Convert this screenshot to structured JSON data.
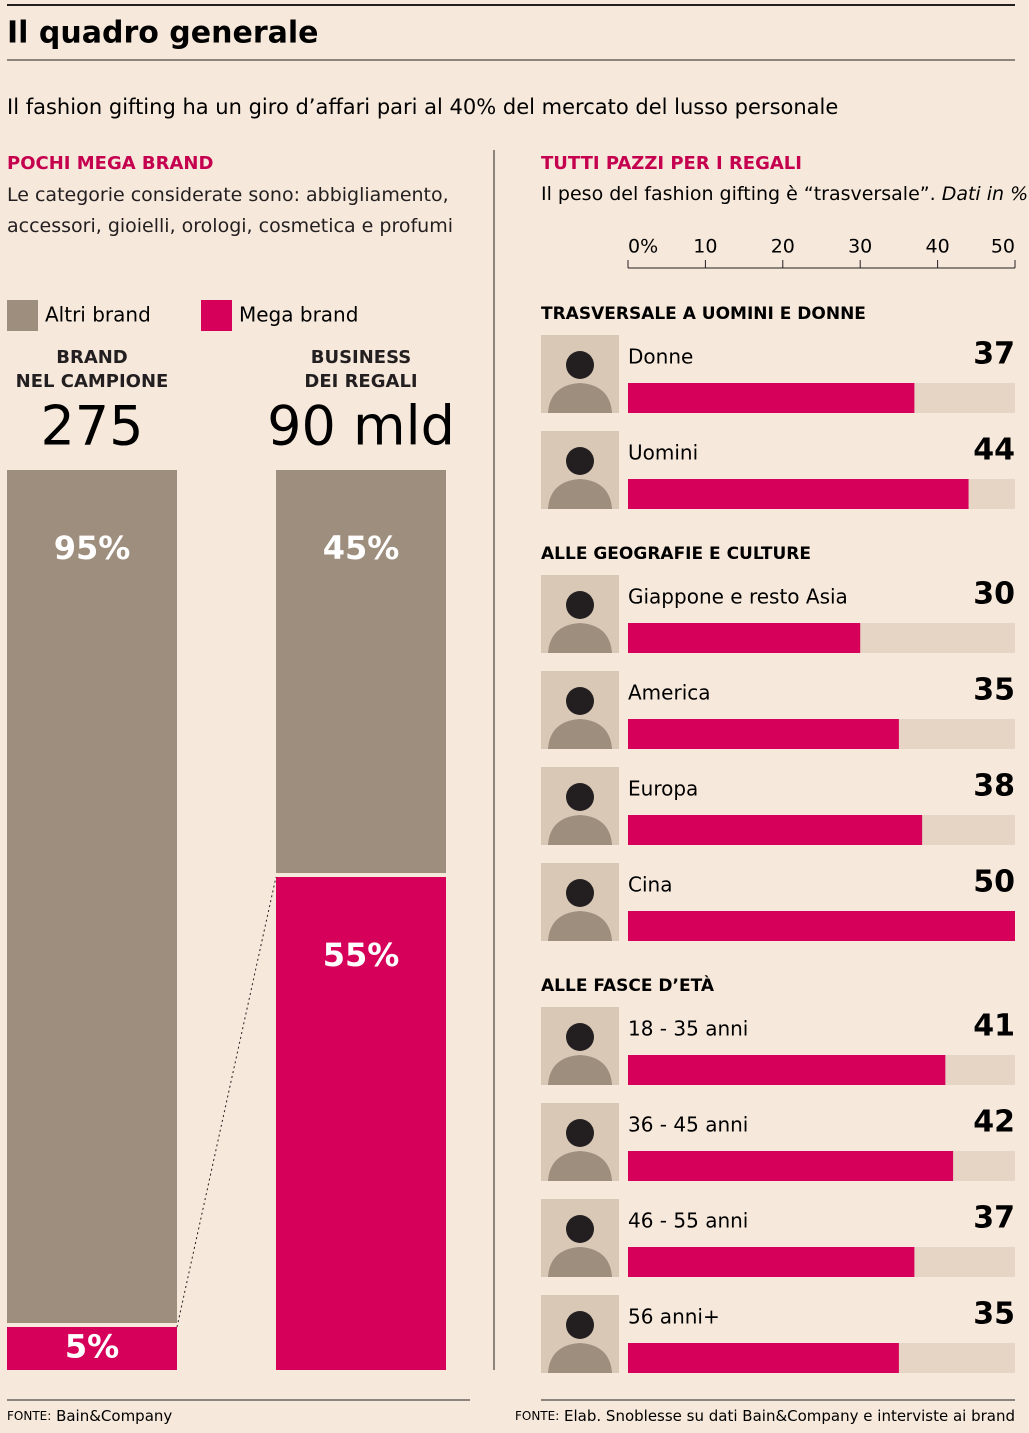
{
  "title": "Il quadro generale",
  "subtitle": "Il fashion gifting ha un giro d’affari pari al 40% del mercato del lusso personale",
  "chart_data": [
    {
      "type": "stacked-column",
      "heading": "POCHI MEGA BRAND",
      "note": "Le categorie considerate sono: abbigliamento, accessori, gioielli, orologi, cosmetica e profumi",
      "categories": [
        "BRAND\nNEL CAMPIONE",
        "BUSINESS\nDEI REGALI"
      ],
      "category_totals": [
        "275",
        "90 mld"
      ],
      "ylim": [
        0,
        100
      ],
      "series": [
        {
          "name": "Altri brand",
          "color": "#9e8e7e",
          "values": [
            95,
            45
          ],
          "value_labels": [
            "95%",
            "45%"
          ]
        },
        {
          "name": "Mega brand",
          "color": "#d6005a",
          "values": [
            5,
            55
          ],
          "value_labels": [
            "5%",
            "55%"
          ]
        }
      ],
      "source": {
        "label": "FONTE:",
        "text": "Bain&Company"
      }
    },
    {
      "type": "bar",
      "heading": "TUTTI PAZZI PER I REGALI",
      "note": "Il peso del fashion gifting è “trasversale”.",
      "note_italic": "Dati in %",
      "xlim": [
        0,
        50
      ],
      "xticks": [
        {
          "value": 0,
          "label": "0%"
        },
        10,
        20,
        30,
        40,
        50
      ],
      "color": "#d6005a",
      "track_color": "#e6d4c4",
      "groups": [
        {
          "heading": "TRASVERSALE A UOMINI E DONNE",
          "categories": [
            "Donne",
            "Uomini"
          ],
          "values": [
            37,
            44
          ]
        },
        {
          "heading": "ALLE GEOGRAFIE E CULTURE",
          "categories": [
            "Giappone e resto Asia",
            "America",
            "Europa",
            "Cina"
          ],
          "values": [
            30,
            35,
            38,
            50
          ]
        },
        {
          "heading": "ALLE FASCE D’ETÀ",
          "categories": [
            "18 - 35 anni",
            "36 - 45 anni",
            "46 - 55 anni",
            "56 anni+"
          ],
          "values": [
            41,
            42,
            37,
            35
          ]
        }
      ],
      "source": {
        "label": "FONTE:",
        "text": "Elab. Snoblesse su dati Bain&Company e interviste ai brand"
      }
    }
  ]
}
